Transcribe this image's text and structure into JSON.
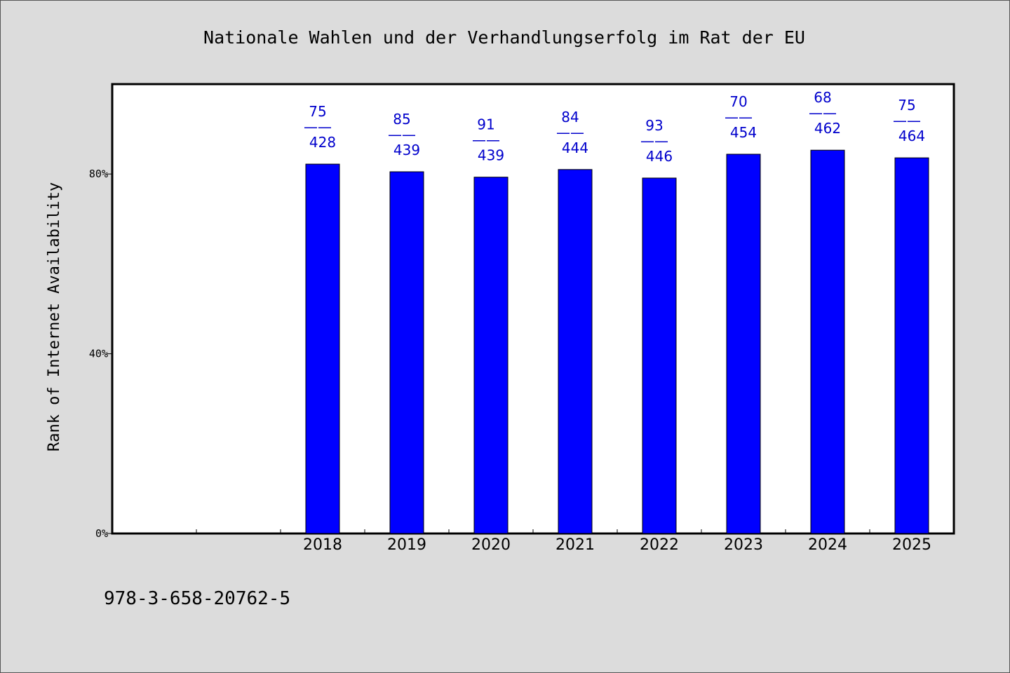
{
  "chart_data": {
    "type": "bar",
    "title": "Nationale Wahlen und der Verhandlungserfolg im Rat der EU",
    "ylabel": "Rank of Internet Availability",
    "xlabel": "",
    "categories": [
      "",
      "",
      "2018",
      "2019",
      "2020",
      "2021",
      "2022",
      "2023",
      "2024",
      "2025"
    ],
    "values": [
      null,
      null,
      82.2,
      80.5,
      79.3,
      81.0,
      79.1,
      84.4,
      85.3,
      83.6
    ],
    "labels_top": [
      "",
      "",
      "75",
      "85",
      "91",
      "84",
      "93",
      "70",
      "68",
      "75"
    ],
    "labels_bottom": [
      "",
      "",
      "428",
      "439",
      "439",
      "444",
      "446",
      "454",
      "462",
      "464"
    ],
    "label_separator": "——",
    "ylim": [
      0,
      100
    ],
    "yticks": [
      0,
      40,
      80
    ],
    "ytick_labels": [
      "0%",
      "40%",
      "80%"
    ],
    "bar_color": "#0000ff",
    "label_color": "#0000cc",
    "grid": false,
    "legend": "none"
  },
  "footer": {
    "isbn": "978-3-658-20762-5"
  }
}
